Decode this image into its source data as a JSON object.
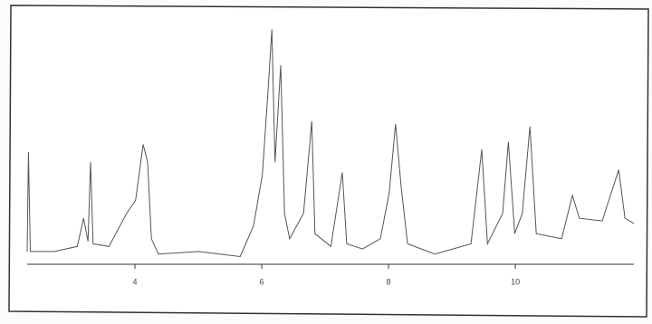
{
  "chart_data": {
    "type": "line",
    "xlim": [
      2.3,
      11.87
    ],
    "xticks": [
      4,
      6,
      8,
      10
    ],
    "ylim": [
      0,
      100
    ],
    "color": "#555555",
    "x": [
      2.3,
      2.32,
      2.35,
      2.73,
      3.09,
      3.19,
      3.26,
      3.3,
      3.34,
      3.59,
      3.87,
      4.01,
      4.13,
      4.2,
      4.26,
      4.37,
      5.01,
      5.66,
      5.87,
      6.01,
      6.1,
      6.16,
      6.21,
      6.3,
      6.36,
      6.44,
      6.66,
      6.79,
      6.84,
      7.09,
      7.27,
      7.34,
      7.59,
      7.87,
      8.01,
      8.11,
      8.2,
      8.3,
      8.73,
      9.3,
      9.47,
      9.56,
      9.8,
      9.89,
      9.99,
      10.11,
      10.23,
      10.33,
      10.73,
      10.9,
      11.01,
      11.37,
      11.63,
      11.73,
      11.87
    ],
    "values": [
      5,
      44,
      5,
      5,
      7,
      18,
      9,
      40,
      8,
      7,
      20,
      25,
      47,
      40,
      10,
      4,
      5,
      3,
      15,
      35,
      68,
      92,
      40,
      78,
      20,
      10,
      20,
      56,
      12,
      7,
      36,
      8,
      6,
      10,
      28,
      55,
      30,
      8,
      4,
      8,
      45,
      8,
      20,
      48,
      12,
      20,
      54,
      12,
      10,
      27,
      18,
      17,
      37,
      18,
      16
    ]
  }
}
